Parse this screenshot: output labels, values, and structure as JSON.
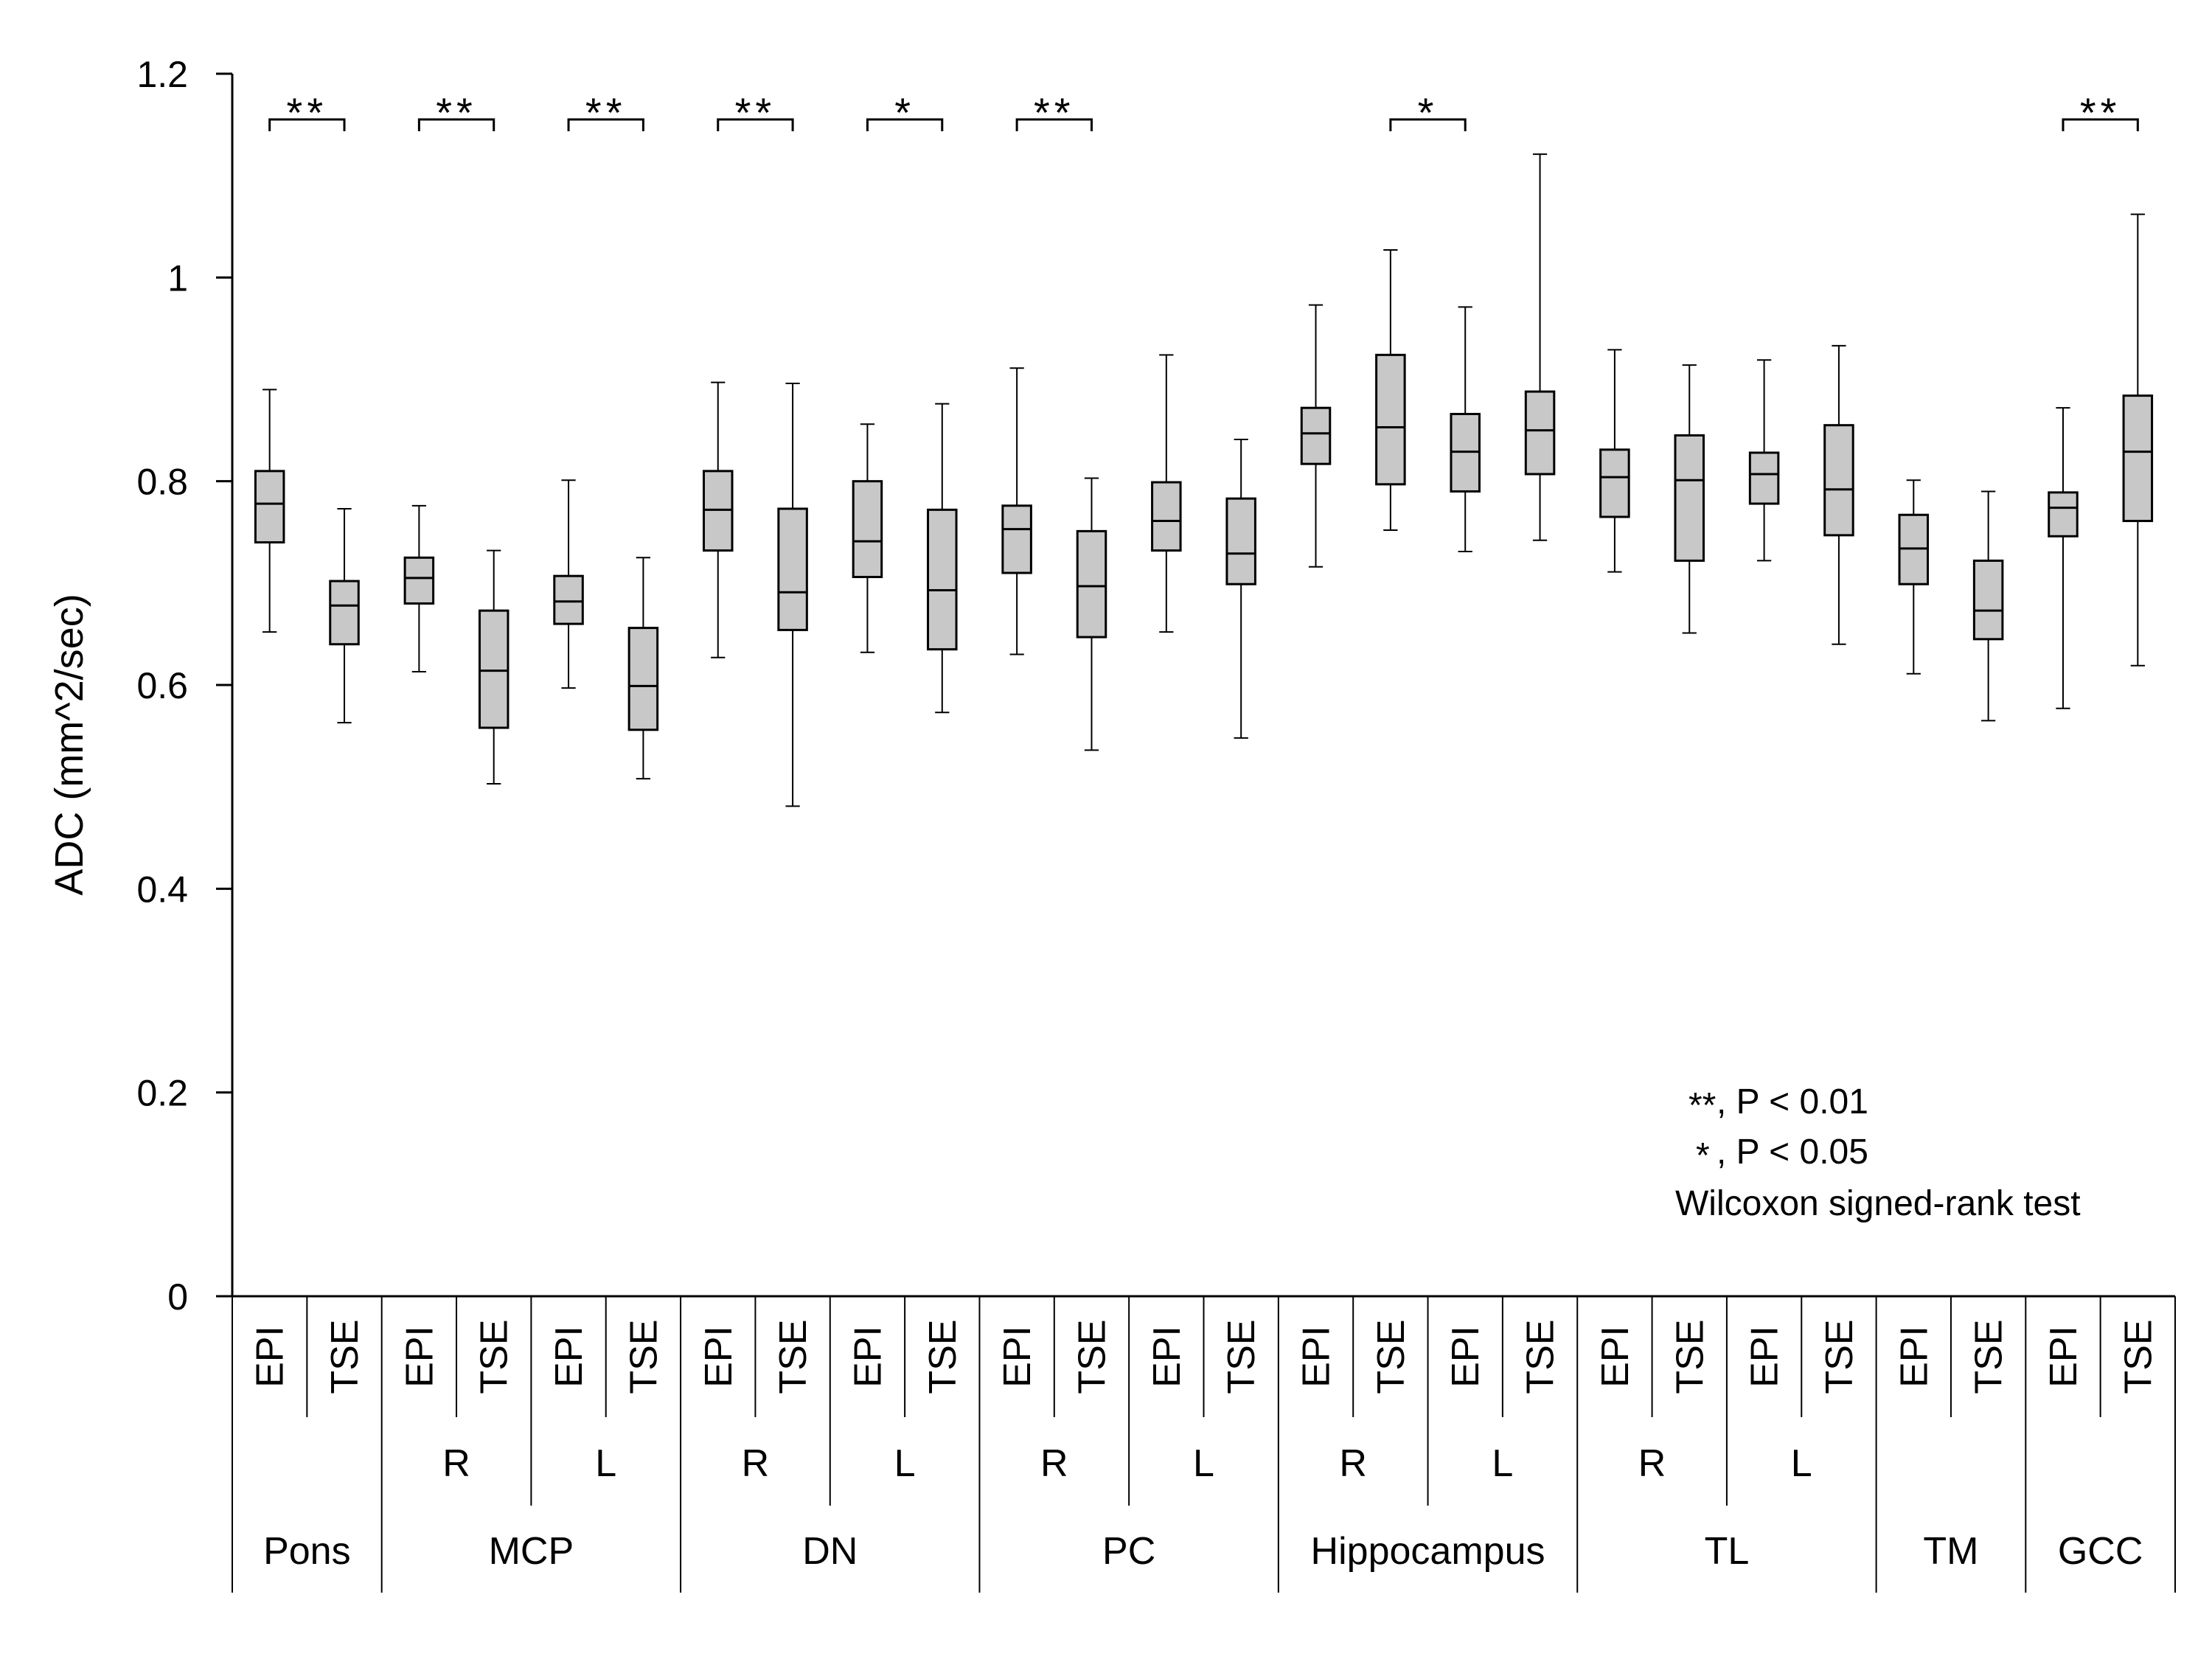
{
  "chart_data": {
    "type": "boxplot",
    "ylabel": "ADC (mm^2/sec)",
    "ylim": [
      0,
      1.2
    ],
    "yticks": [
      "0",
      "0.2",
      "0.4",
      "0.6",
      "0.8",
      "1",
      "1.2"
    ],
    "box_color": "#c8c8c8",
    "categories": [
      "EPI",
      "TSE",
      "EPI",
      "TSE",
      "EPI",
      "TSE",
      "EPI",
      "TSE",
      "EPI",
      "TSE",
      "EPI",
      "TSE",
      "EPI",
      "TSE",
      "EPI",
      "TSE",
      "EPI",
      "TSE",
      "EPI",
      "TSE",
      "EPI",
      "TSE",
      "EPI",
      "TSE",
      "EPI",
      "TSE"
    ],
    "sides": [
      {
        "label": "R",
        "start": 2,
        "end": 3
      },
      {
        "label": "L",
        "start": 4,
        "end": 5
      },
      {
        "label": "R",
        "start": 6,
        "end": 7
      },
      {
        "label": "L",
        "start": 8,
        "end": 9
      },
      {
        "label": "R",
        "start": 10,
        "end": 11
      },
      {
        "label": "L",
        "start": 12,
        "end": 13
      },
      {
        "label": "R",
        "start": 14,
        "end": 15
      },
      {
        "label": "L",
        "start": 16,
        "end": 17
      },
      {
        "label": "R",
        "start": 18,
        "end": 19
      },
      {
        "label": "L",
        "start": 20,
        "end": 21
      }
    ],
    "regions": [
      {
        "label": "Pons",
        "start": 0,
        "end": 1
      },
      {
        "label": "MCP",
        "start": 2,
        "end": 5
      },
      {
        "label": "DN",
        "start": 6,
        "end": 9
      },
      {
        "label": "PC",
        "start": 10,
        "end": 13
      },
      {
        "label": "Hippocampus",
        "start": 14,
        "end": 17
      },
      {
        "label": "TL",
        "start": 18,
        "end": 21
      },
      {
        "label": "TM",
        "start": 22,
        "end": 23
      },
      {
        "label": "GCC",
        "start": 24,
        "end": 25
      }
    ],
    "boxes": [
      {
        "min": 0.652,
        "q1": 0.74,
        "median": 0.778,
        "q3": 0.81,
        "max": 0.89
      },
      {
        "min": 0.563,
        "q1": 0.64,
        "median": 0.678,
        "q3": 0.702,
        "max": 0.773
      },
      {
        "min": 0.613,
        "q1": 0.68,
        "median": 0.705,
        "q3": 0.725,
        "max": 0.776
      },
      {
        "min": 0.503,
        "q1": 0.558,
        "median": 0.614,
        "q3": 0.673,
        "max": 0.732
      },
      {
        "min": 0.597,
        "q1": 0.66,
        "median": 0.682,
        "q3": 0.707,
        "max": 0.801
      },
      {
        "min": 0.508,
        "q1": 0.556,
        "median": 0.599,
        "q3": 0.656,
        "max": 0.725
      },
      {
        "min": 0.627,
        "q1": 0.732,
        "median": 0.772,
        "q3": 0.81,
        "max": 0.897
      },
      {
        "min": 0.481,
        "q1": 0.654,
        "median": 0.691,
        "q3": 0.773,
        "max": 0.896
      },
      {
        "min": 0.632,
        "q1": 0.706,
        "median": 0.741,
        "q3": 0.8,
        "max": 0.856
      },
      {
        "min": 0.573,
        "q1": 0.635,
        "median": 0.693,
        "q3": 0.772,
        "max": 0.876
      },
      {
        "min": 0.63,
        "q1": 0.71,
        "median": 0.753,
        "q3": 0.776,
        "max": 0.911
      },
      {
        "min": 0.536,
        "q1": 0.647,
        "median": 0.697,
        "q3": 0.751,
        "max": 0.803
      },
      {
        "min": 0.652,
        "q1": 0.732,
        "median": 0.761,
        "q3": 0.799,
        "max": 0.924
      },
      {
        "min": 0.548,
        "q1": 0.699,
        "median": 0.729,
        "q3": 0.783,
        "max": 0.841
      },
      {
        "min": 0.716,
        "q1": 0.817,
        "median": 0.847,
        "q3": 0.872,
        "max": 0.973
      },
      {
        "min": 0.752,
        "q1": 0.797,
        "median": 0.853,
        "q3": 0.924,
        "max": 1.027
      },
      {
        "min": 0.731,
        "q1": 0.79,
        "median": 0.829,
        "q3": 0.866,
        "max": 0.971
      },
      {
        "min": 0.742,
        "q1": 0.807,
        "median": 0.85,
        "q3": 0.888,
        "max": 1.121
      },
      {
        "min": 0.711,
        "q1": 0.765,
        "median": 0.804,
        "q3": 0.831,
        "max": 0.929
      },
      {
        "min": 0.651,
        "q1": 0.722,
        "median": 0.801,
        "q3": 0.845,
        "max": 0.914
      },
      {
        "min": 0.722,
        "q1": 0.778,
        "median": 0.807,
        "q3": 0.828,
        "max": 0.919
      },
      {
        "min": 0.64,
        "q1": 0.747,
        "median": 0.792,
        "q3": 0.855,
        "max": 0.933
      },
      {
        "min": 0.611,
        "q1": 0.699,
        "median": 0.734,
        "q3": 0.767,
        "max": 0.801
      },
      {
        "min": 0.565,
        "q1": 0.645,
        "median": 0.673,
        "q3": 0.722,
        "max": 0.79
      },
      {
        "min": 0.577,
        "q1": 0.746,
        "median": 0.774,
        "q3": 0.789,
        "max": 0.872
      },
      {
        "min": 0.619,
        "q1": 0.761,
        "median": 0.829,
        "q3": 0.884,
        "max": 1.062
      }
    ],
    "significance": [
      {
        "label": "**",
        "start": 0,
        "end": 1
      },
      {
        "label": "**",
        "start": 2,
        "end": 3
      },
      {
        "label": "**",
        "start": 4,
        "end": 5
      },
      {
        "label": "**",
        "start": 6,
        "end": 7
      },
      {
        "label": "*",
        "start": 8,
        "end": 9
      },
      {
        "label": "**",
        "start": 10,
        "end": 11
      },
      {
        "label": "*",
        "start": 15,
        "end": 16
      },
      {
        "label": "**",
        "start": 24,
        "end": 25
      }
    ],
    "legend": {
      "line1_stars": "**",
      "line1_text": ", P < 0.01",
      "line2_stars": "*",
      "line2_text": ", P < 0.05",
      "line3_text": "Wilcoxon signed-rank test"
    }
  }
}
